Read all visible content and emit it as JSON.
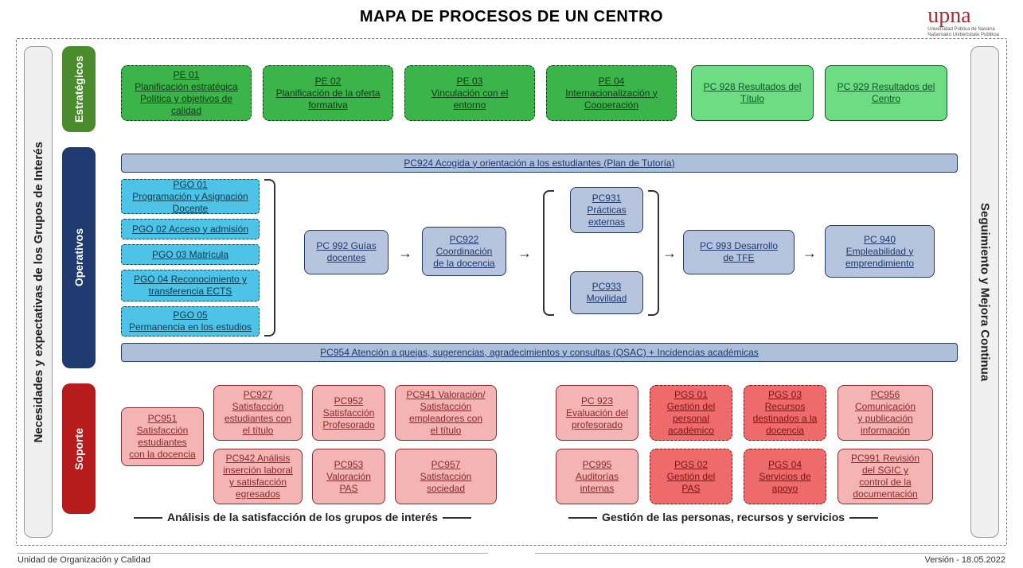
{
  "title": "MAPA DE PROCESOS DE UN CENTRO",
  "logo": {
    "text": "upna",
    "sub1": "Universidad Pública de Navarra",
    "sub2": "Nafarroako Unibertsitate Publikoa"
  },
  "footer_left": "Unidad de Organización y Calidad",
  "footer_right": "Versión - 18.05.2022",
  "side_left": "Necesidades y expectativas de los Grupos de Interés",
  "side_right": "Seguimiento y Mejora Continua",
  "cat_estrat": "Estratégicos",
  "cat_operat": "Operativos",
  "cat_soporte": "Soporte",
  "colors": {
    "green_dashed_bg": "#3bb54a",
    "green_light_bg": "#6edc82",
    "bluewide_bg": "#aebfd9",
    "cyan_bg": "#4ec3e8",
    "lav_bg": "#b7c4de",
    "pink_bg": "#f4b4b4",
    "red_dashed_bg": "#ef6b6b",
    "cat_green": "#4a8b2e",
    "cat_blue": "#1f3a6e",
    "cat_red": "#b71c1c"
  },
  "estrat": {
    "pe01": "PE 01\nPlanificación estratégica\nPolítica y objetivos de\ncalidad",
    "pe02": "PE 02\nPlanificación de la oferta\nformativa",
    "pe03": "PE 03\nVinculación con el\nentorno",
    "pe04": "PE 04\nInternacionalización y\nCooperación",
    "pc928": "PC 928 Resultados del\nTítulo",
    "pc929": "PC 929 Resultados del\nCentro"
  },
  "oper": {
    "pc924": "PC924 Acogida y orientación a los estudiantes (Plan de Tutoría)",
    "pgo01": "PGO 01\nProgramación y Asignación\nDocente",
    "pgo02": "PGO 02 Acceso y admisión",
    "pgo03": "PGO 03 Matrícula",
    "pgo04": "PGO 04 Reconocimiento y\ntransferencia ECTS",
    "pgo05": "PGO 05\nPermanencia en los estudios",
    "pc992": "PC 992 Guías\ndocentes",
    "pc922": "PC922\nCoordinación\nde la docencia",
    "pc931": "PC931\nPrácticas\nexternas",
    "pc933": "PC933\nMovilidad",
    "pc993": "PC 993  Desarrollo\nde TFE",
    "pc940": "PC 940\nEmpleabilidad y\nemprendimiento",
    "pc954": "PC954 Atención a quejas, sugerencias, agradecimientos y consultas (QSAC) + Incidencias académicas"
  },
  "sop": {
    "pc951": "PC951\nSatisfacción\nestudiantes\ncon la docencia",
    "pc927": "PC927\nSatisfacción\nestudiantes con\nel título",
    "pc942": "PC942 Análisis\ninserción laboral\ny satisfacción\negresados",
    "pc952": "PC952\nSatisfacción\nProfesorado",
    "pc953": "PC953\nValoración\nPAS",
    "pc941": "PC941 Valoración/\nSatisfacción\nempleadores con\nel título",
    "pc957": "PC957\nSatisfacción\nsociedad",
    "pc923": "PC 923\nEvaluación del\nprofesorado",
    "pc995": "PC995\nAuditorías\ninternas",
    "pgs01": "PGS 01\nGestión del\npersonal\nacadémico",
    "pgs02": "PGS 02\nGestión del\nPAS",
    "pgs03": "PGS 03\nRecursos\ndestinados a la\ndocencia",
    "pgs04": "PGS 04\nServicios de\napoyo",
    "pc956": "PC956\nComunicación\ny publicación\ninformación",
    "pc991": "PC991 Revisión\ndel SGIC y\ncontrol de la\ndocumentación"
  },
  "sublabel_left": "Análisis de la  satisfacción de los grupos de interés",
  "sublabel_right": "Gestión de las personas, recursos y servicios"
}
